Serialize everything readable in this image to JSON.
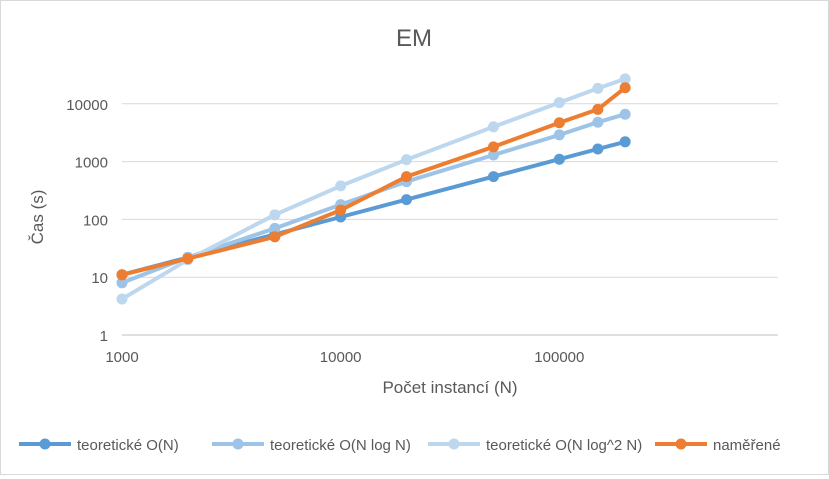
{
  "chart_data": {
    "type": "line",
    "title": "EM",
    "xlabel": "Počet instancí (N)",
    "ylabel": "Čas (s)",
    "x_scale": "log",
    "y_scale": "log",
    "xlim": [
      1000,
      1000000
    ],
    "ylim": [
      1,
      100000
    ],
    "x_ticks": [
      1000,
      10000,
      100000
    ],
    "x_tick_labels": [
      "1000",
      "10000",
      "100000"
    ],
    "y_ticks": [
      1,
      10,
      100,
      1000,
      10000
    ],
    "y_tick_labels": [
      "1",
      "10",
      "100",
      "1000",
      "10000"
    ],
    "grid": "horizontal",
    "legend": "bottom",
    "x": [
      1000,
      2000,
      5000,
      10000,
      20000,
      50000,
      100000,
      150000,
      200000
    ],
    "series": [
      {
        "name": "teoretické O(N)",
        "color": "#5B9BD5",
        "values": [
          11,
          22,
          55,
          110,
          220,
          550,
          1100,
          1650,
          2200
        ]
      },
      {
        "name": "teoretické O(N log N)",
        "color": "#9DC3E6",
        "values": [
          8,
          22,
          70,
          180,
          450,
          1300,
          2900,
          4800,
          6600
        ]
      },
      {
        "name": "teoretické O(N log^2 N)",
        "color": "#BDD7EE",
        "values": [
          4.2,
          20,
          120,
          380,
          1080,
          4000,
          10500,
          18500,
          27000
        ]
      },
      {
        "name": "naměřené",
        "color": "#ED7D31",
        "values": [
          11,
          21,
          50,
          145,
          550,
          1800,
          4700,
          8000,
          19000
        ]
      }
    ]
  }
}
